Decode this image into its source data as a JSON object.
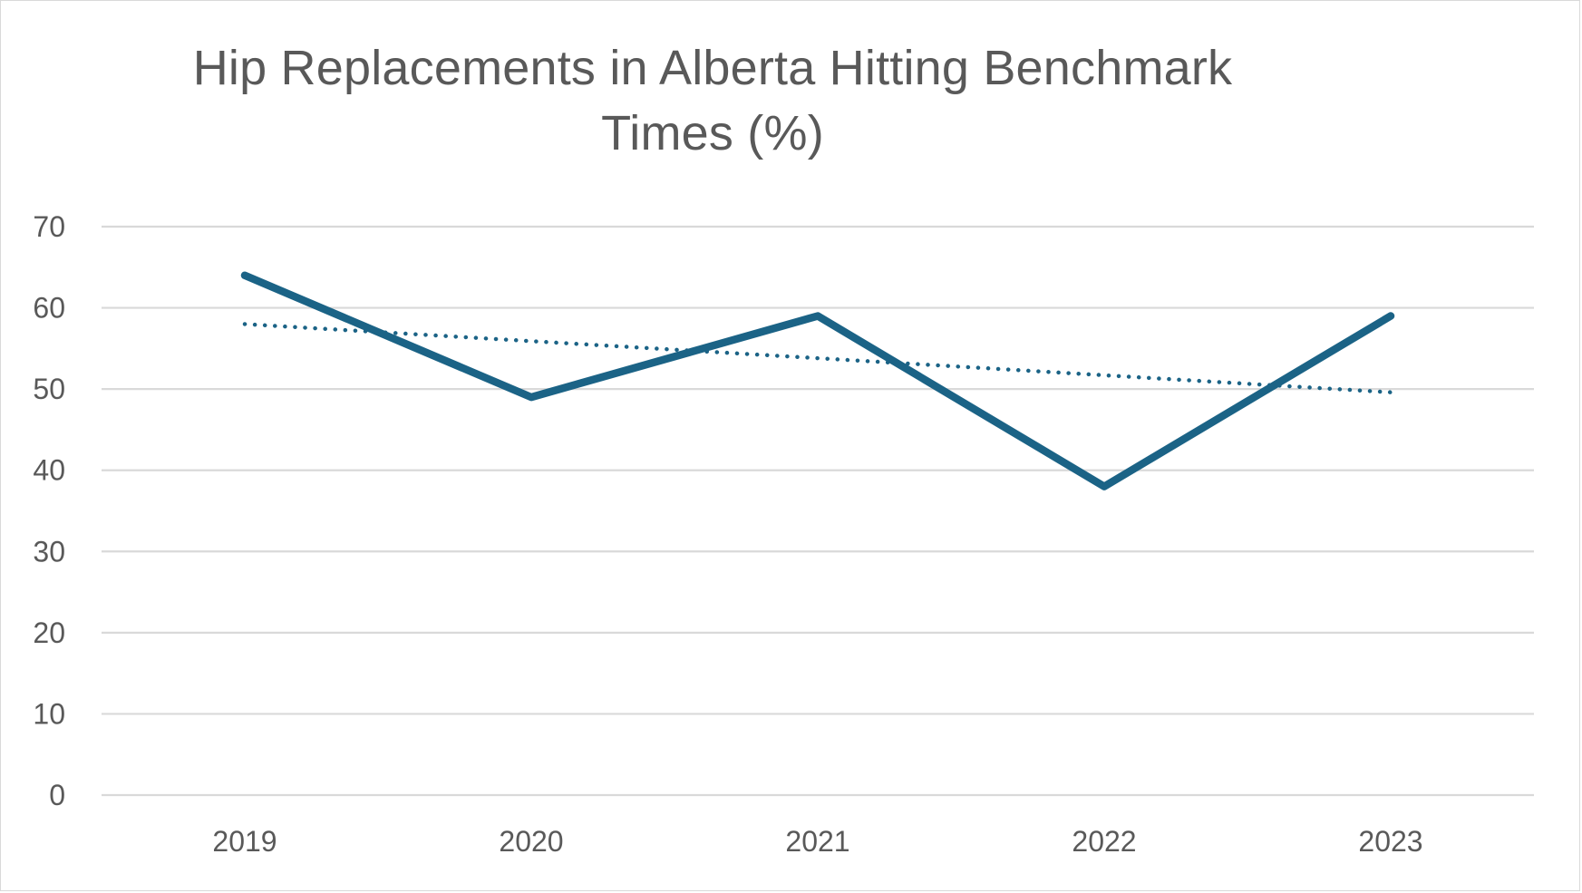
{
  "chart_data": {
    "type": "line",
    "title": "Hip Replacements in Alberta Hitting Benchmark Times (%)",
    "xlabel": "",
    "ylabel": "",
    "categories": [
      "2019",
      "2020",
      "2021",
      "2022",
      "2023"
    ],
    "series": [
      {
        "values": [
          64,
          49,
          59,
          38,
          59
        ],
        "color": "#1b6386",
        "style": "solid"
      }
    ],
    "trendline": {
      "type": "linear",
      "values": [
        58,
        55.9,
        53.8,
        51.7,
        49.6
      ],
      "color": "#1b6386",
      "style": "dotted"
    },
    "ylim": [
      0,
      70
    ],
    "yticks": [
      0,
      10,
      20,
      30,
      40,
      50,
      60,
      70
    ],
    "grid": true,
    "legend": "none"
  }
}
